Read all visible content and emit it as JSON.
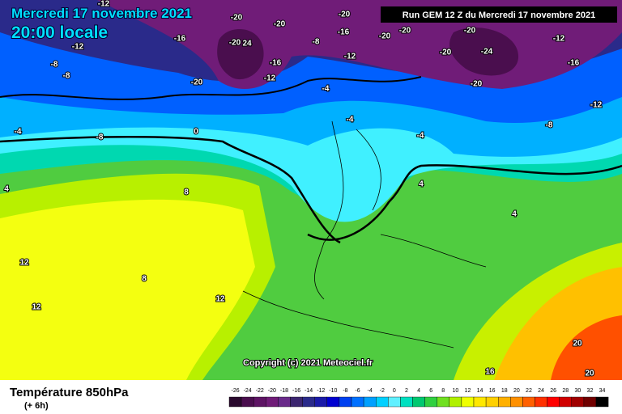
{
  "header": {
    "date": "Mercredi 17 novembre 2021",
    "time": "20:00 locale",
    "run": "Run GEM 12 Z du Mercredi 17 novembre 2021"
  },
  "footer": {
    "title": "Température 850hPa",
    "subtitle": "(+ 6h)",
    "copyright": "Copyright (c) 2021 Meteociel.fr"
  },
  "legend": {
    "values": [
      -26,
      -24,
      -22,
      -20,
      -18,
      -16,
      -14,
      -12,
      -10,
      -8,
      -6,
      -4,
      -2,
      0,
      2,
      4,
      6,
      8,
      10,
      12,
      14,
      16,
      18,
      20,
      22,
      24,
      26,
      28,
      30,
      32,
      34
    ],
    "colors": [
      "#2a0a2e",
      "#4a0e4e",
      "#5e1464",
      "#701c78",
      "#6a2a8a",
      "#3c2670",
      "#2a2a8a",
      "#1a1aa8",
      "#0000d0",
      "#0040f0",
      "#0070ff",
      "#00a0ff",
      "#00d0ff",
      "#60f0ff",
      "#00e0c0",
      "#00c870",
      "#30d040",
      "#70e020",
      "#b0f000",
      "#f0ff00",
      "#ffe800",
      "#ffd000",
      "#ffb000",
      "#ff9000",
      "#ff6000",
      "#ff3000",
      "#ff0000",
      "#d00000",
      "#a00000",
      "#700000",
      "#000000"
    ]
  },
  "map_labels": [
    "-12",
    "-16",
    "-20",
    "-20",
    "-16",
    "-20",
    "-20",
    "-20",
    "-20",
    "-12",
    "-12",
    "-16",
    "-20",
    "24",
    "-8",
    "-12",
    "-20",
    "-24",
    "-16",
    "-8",
    "-20",
    "-12",
    "-16",
    "-20",
    "-12",
    "-4",
    "-8",
    "-4",
    "-8",
    "0",
    "-4",
    "-4",
    "-8",
    "4",
    "8",
    "4",
    "12",
    "12",
    "8",
    "12",
    "4",
    "16",
    "20",
    "20"
  ]
}
